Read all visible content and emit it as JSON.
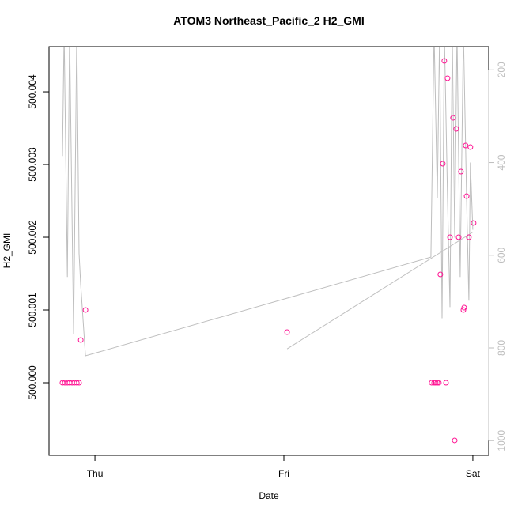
{
  "chart_data": {
    "type": "scatter",
    "title": "ATOM3 Northeast_Pacific_2 H2_GMI",
    "xlabel": "Date",
    "ylabel": "H2_GMI",
    "xlim": [
      -0.243,
      2.084
    ],
    "xticks": [
      {
        "value": 0,
        "label": "Thu"
      },
      {
        "value": 1,
        "label": "Fri"
      },
      {
        "value": 2,
        "label": "Sat"
      }
    ],
    "ylim": [
      499.999,
      500.00462
    ],
    "yticks": [
      {
        "value": 500,
        "label": "500.000"
      },
      500.001,
      500.002,
      500.003,
      500.004
    ],
    "y2lim": [
      1032,
      150
    ],
    "y2ticks": [
      200,
      400,
      600,
      800,
      1000
    ],
    "series": [
      {
        "color": "#ff1493",
        "x": [
          -0.172,
          -0.159,
          -0.146,
          -0.134,
          -0.121,
          -0.109,
          -0.096,
          -0.084,
          -0.075,
          -0.05,
          1.017,
          1.782,
          1.795,
          1.803,
          1.812,
          1.82,
          1.858,
          1.828,
          1.841,
          1.849,
          1.866,
          1.879,
          1.895,
          1.904,
          1.912,
          1.925,
          1.937,
          1.95,
          1.954,
          1.962,
          1.967,
          1.979,
          1.987,
          2.004
        ],
        "values": [
          500,
          500,
          500,
          500,
          500,
          500,
          500,
          500,
          500.000587,
          500.001,
          500.000696,
          500,
          500,
          500,
          500,
          500,
          500,
          500.001489,
          500.003011,
          500.004424,
          500.004185,
          500.002,
          500.003641,
          499.999207,
          500.003489,
          500.002,
          500.002902,
          500.001,
          500.001033,
          500.003261,
          500.002565,
          500.002,
          500.003239,
          500.002196
        ]
      },
      {
        "type": "line",
        "axis": "y2",
        "color": "#bebebe",
        "x": [
          -0.172,
          -0.163,
          -0.146,
          -0.134,
          -0.113,
          -0.096,
          -0.084,
          -0.075,
          -0.05,
          1.778,
          1.795,
          1.812,
          1.824,
          1.837,
          1.849,
          1.866,
          1.879,
          1.891,
          1.904,
          1.916,
          1.933,
          1.95,
          1.967,
          1.979,
          1.987,
          2.0,
          null,
          1.017,
          2.0
        ],
        "values": [
          386,
          118,
          647,
          118,
          771,
          118,
          596,
          664,
          817,
          604,
          118,
          476,
          118,
          736,
          118,
          476,
          712,
          118,
          562,
          118,
          647,
          118,
          476,
          698,
          400,
          545,
          null,
          802,
          550
        ]
      }
    ]
  }
}
